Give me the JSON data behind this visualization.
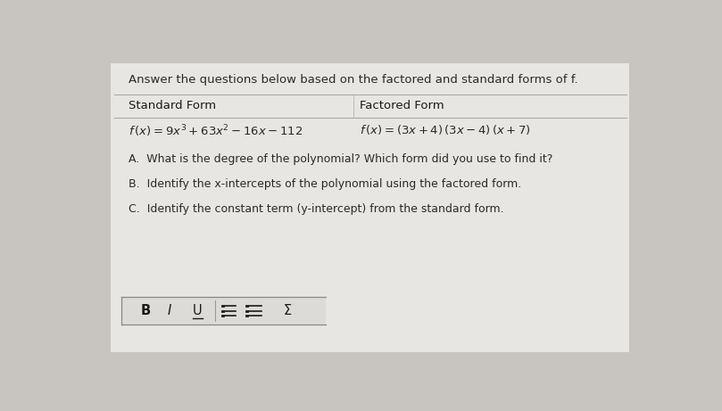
{
  "background_color": "#c8c4c0",
  "card_color": "#e8e6e3",
  "title_text": "Answer the questions below based on the factored and standard forms of f.",
  "col1_header": "Standard Form",
  "col2_header": "Factored Form",
  "question_a": "A.  What is the degree of the polynomial? Which form did you use to find it?",
  "question_b": "B.  Identify the x-intercepts of the polynomial using the factored form.",
  "question_c": "C.  Identify the constant term (y-intercept) from the standard form.",
  "text_color": "#2a2a2a",
  "header_color": "#1a1a1a",
  "line_color": "#aaaaaa",
  "card_border_color": "#bbbbbb",
  "toolbar_color": "#dddbd8",
  "title_fontsize": 9.5,
  "header_fontsize": 9.5,
  "formula_fontsize": 9.5,
  "question_fontsize": 9.0,
  "toolbar_fontsize": 10.5
}
